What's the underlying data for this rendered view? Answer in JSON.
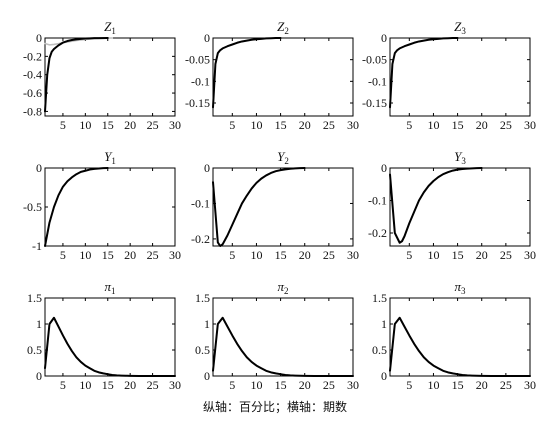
{
  "caption": "纵轴：百分比；横轴：期数",
  "chart_data": [
    {
      "type": "line",
      "title_base": "Z",
      "title_sub": "1",
      "xlim": [
        1,
        30
      ],
      "ylim": [
        -0.85,
        0
      ],
      "xticks": [
        5,
        10,
        15,
        20,
        25,
        30
      ],
      "yticks": [
        0,
        -0.2,
        -0.4,
        -0.6,
        -0.8
      ],
      "ytick_labels": [
        "0",
        "-0.2",
        "-0.4",
        "-0.6",
        "-0.8"
      ],
      "series": [
        {
          "color": "#000000",
          "x": [
            1,
            1.5,
            2,
            2.5,
            3,
            4,
            5,
            6,
            7,
            8,
            9,
            10,
            11,
            12,
            13,
            15
          ],
          "y": [
            -0.8,
            -0.4,
            -0.22,
            -0.15,
            -0.12,
            -0.08,
            -0.05,
            -0.033,
            -0.022,
            -0.015,
            -0.01,
            -0.006,
            -0.004,
            -0.002,
            -0.001,
            0
          ]
        },
        {
          "color": "#bfbfbf",
          "x": [
            1,
            2,
            3,
            4,
            5,
            6,
            7,
            8,
            9,
            10,
            11,
            12,
            13,
            14,
            15,
            16
          ],
          "y": [
            -0.06,
            -0.075,
            -0.07,
            -0.062,
            -0.052,
            -0.043,
            -0.035,
            -0.027,
            -0.021,
            -0.016,
            -0.012,
            -0.008,
            -0.005,
            -0.003,
            -0.001,
            0
          ]
        }
      ]
    },
    {
      "type": "line",
      "title_base": "Z",
      "title_sub": "2",
      "xlim": [
        1,
        30
      ],
      "ylim": [
        -0.18,
        0
      ],
      "xticks": [
        5,
        10,
        15,
        20,
        25,
        30
      ],
      "yticks": [
        0,
        -0.05,
        -0.1,
        -0.15
      ],
      "ytick_labels": [
        "0",
        "-0.05",
        "-0.1",
        "-0.15"
      ],
      "series": [
        {
          "color": "#000000",
          "x": [
            1,
            1.5,
            2,
            2.5,
            3,
            4,
            5,
            6,
            7,
            8,
            9,
            10,
            11,
            12,
            13,
            14,
            15
          ],
          "y": [
            -0.16,
            -0.06,
            -0.035,
            -0.028,
            -0.024,
            -0.019,
            -0.015,
            -0.011,
            -0.008,
            -0.006,
            -0.004,
            -0.003,
            -0.002,
            -0.001,
            -0.0005,
            0,
            0
          ]
        }
      ]
    },
    {
      "type": "line",
      "title_base": "Z",
      "title_sub": "3",
      "xlim": [
        1,
        30
      ],
      "ylim": [
        -0.18,
        0
      ],
      "xticks": [
        5,
        10,
        15,
        20,
        25,
        30
      ],
      "yticks": [
        0,
        -0.05,
        -0.1,
        -0.15
      ],
      "ytick_labels": [
        "0",
        "-0.05",
        "-0.1",
        "-0.15"
      ],
      "series": [
        {
          "color": "#000000",
          "x": [
            1,
            1.5,
            2,
            2.5,
            3,
            4,
            5,
            6,
            7,
            8,
            9,
            10,
            11,
            12,
            13,
            14,
            15
          ],
          "y": [
            -0.16,
            -0.06,
            -0.035,
            -0.028,
            -0.024,
            -0.019,
            -0.015,
            -0.011,
            -0.008,
            -0.006,
            -0.004,
            -0.003,
            -0.002,
            -0.001,
            -0.0005,
            0,
            0
          ]
        }
      ]
    },
    {
      "type": "line",
      "title_base": "Y",
      "title_sub": "1",
      "xlim": [
        1,
        30
      ],
      "ylim": [
        -1,
        0
      ],
      "xticks": [
        5,
        10,
        15,
        20,
        25,
        30
      ],
      "yticks": [
        0,
        -0.5,
        -1
      ],
      "ytick_labels": [
        "0",
        "-0.5",
        "-1"
      ],
      "series": [
        {
          "color": "#000000",
          "x": [
            1,
            2,
            3,
            4,
            5,
            6,
            7,
            8,
            9,
            10,
            11,
            12,
            13,
            14,
            15
          ],
          "y": [
            -1.0,
            -0.7,
            -0.5,
            -0.35,
            -0.24,
            -0.17,
            -0.12,
            -0.08,
            -0.05,
            -0.035,
            -0.02,
            -0.012,
            -0.006,
            -0.002,
            0
          ]
        }
      ]
    },
    {
      "type": "line",
      "title_base": "Y",
      "title_sub": "2",
      "xlim": [
        1,
        30
      ],
      "ylim": [
        -0.22,
        0
      ],
      "xticks": [
        5,
        10,
        15,
        20,
        25,
        30
      ],
      "yticks": [
        0,
        -0.1,
        -0.2
      ],
      "ytick_labels": [
        "0",
        "-0.1",
        "-0.2"
      ],
      "series": [
        {
          "color": "#000000",
          "x": [
            1,
            2,
            2.5,
            3,
            4,
            5,
            6,
            7,
            8,
            9,
            10,
            11,
            12,
            13,
            14,
            15,
            16,
            17,
            18,
            19,
            20
          ],
          "y": [
            -0.04,
            -0.21,
            -0.22,
            -0.215,
            -0.19,
            -0.16,
            -0.13,
            -0.1,
            -0.078,
            -0.058,
            -0.042,
            -0.03,
            -0.021,
            -0.014,
            -0.009,
            -0.006,
            -0.004,
            -0.002,
            -0.001,
            -0.0005,
            0
          ]
        }
      ]
    },
    {
      "type": "line",
      "title_base": "Y",
      "title_sub": "3",
      "xlim": [
        1,
        30
      ],
      "ylim": [
        -0.24,
        0
      ],
      "xticks": [
        5,
        10,
        15,
        20,
        25,
        30
      ],
      "yticks": [
        0,
        -0.1,
        -0.2
      ],
      "ytick_labels": [
        "0",
        "-0.1",
        "-0.2"
      ],
      "series": [
        {
          "color": "#000000",
          "x": [
            1,
            2,
            3,
            3.5,
            4,
            5,
            6,
            7,
            8,
            9,
            10,
            11,
            12,
            13,
            14,
            15,
            16,
            17,
            18,
            19,
            20
          ],
          "y": [
            -0.02,
            -0.2,
            -0.23,
            -0.225,
            -0.21,
            -0.17,
            -0.135,
            -0.1,
            -0.075,
            -0.055,
            -0.04,
            -0.028,
            -0.019,
            -0.013,
            -0.008,
            -0.005,
            -0.003,
            -0.002,
            -0.001,
            -0.0005,
            0
          ]
        }
      ]
    },
    {
      "type": "line",
      "title_base": "π",
      "title_sub": "1",
      "xlim": [
        1,
        30
      ],
      "ylim": [
        0,
        1.5
      ],
      "xticks": [
        5,
        10,
        15,
        20,
        25,
        30
      ],
      "yticks": [
        0,
        0.5,
        1,
        1.5
      ],
      "ytick_labels": [
        "0",
        "0.5",
        "1",
        "1.5"
      ],
      "series": [
        {
          "color": "#000000",
          "x": [
            1,
            2,
            3,
            4,
            5,
            6,
            7,
            8,
            9,
            10,
            11,
            12,
            13,
            14,
            15,
            16,
            17,
            18,
            19,
            20,
            22,
            25,
            30
          ],
          "y": [
            0.15,
            1.0,
            1.12,
            0.95,
            0.78,
            0.62,
            0.48,
            0.36,
            0.27,
            0.2,
            0.15,
            0.1,
            0.07,
            0.05,
            0.035,
            0.02,
            0.012,
            0.008,
            0.005,
            0.003,
            0.001,
            0,
            0
          ]
        }
      ]
    },
    {
      "type": "line",
      "title_base": "π",
      "title_sub": "2",
      "xlim": [
        1,
        30
      ],
      "ylim": [
        0,
        1.5
      ],
      "xticks": [
        5,
        10,
        15,
        20,
        25,
        30
      ],
      "yticks": [
        0,
        0.5,
        1,
        1.5
      ],
      "ytick_labels": [
        "0",
        "0.5",
        "1",
        "1.5"
      ],
      "series": [
        {
          "color": "#000000",
          "x": [
            1,
            2,
            3,
            4,
            5,
            6,
            7,
            8,
            9,
            10,
            11,
            12,
            13,
            14,
            15,
            16,
            17,
            18,
            19,
            20,
            22,
            25,
            30
          ],
          "y": [
            0.1,
            1.0,
            1.12,
            0.95,
            0.78,
            0.62,
            0.48,
            0.36,
            0.27,
            0.2,
            0.15,
            0.1,
            0.07,
            0.05,
            0.035,
            0.02,
            0.012,
            0.008,
            0.005,
            0.003,
            0.001,
            0,
            0
          ]
        }
      ]
    },
    {
      "type": "line",
      "title_base": "π",
      "title_sub": "3",
      "xlim": [
        1,
        30
      ],
      "ylim": [
        0,
        1.5
      ],
      "xticks": [
        5,
        10,
        15,
        20,
        25,
        30
      ],
      "yticks": [
        0,
        0.5,
        1,
        1.5
      ],
      "ytick_labels": [
        "0",
        "0.5",
        "1",
        "1.5"
      ],
      "series": [
        {
          "color": "#000000",
          "x": [
            1,
            2,
            3,
            4,
            5,
            6,
            7,
            8,
            9,
            10,
            11,
            12,
            13,
            14,
            15,
            16,
            17,
            18,
            19,
            20,
            22,
            25,
            30
          ],
          "y": [
            0.1,
            1.0,
            1.12,
            0.95,
            0.78,
            0.62,
            0.48,
            0.36,
            0.27,
            0.2,
            0.15,
            0.1,
            0.07,
            0.05,
            0.035,
            0.02,
            0.012,
            0.008,
            0.005,
            0.003,
            0.001,
            0,
            0
          ]
        }
      ]
    }
  ]
}
